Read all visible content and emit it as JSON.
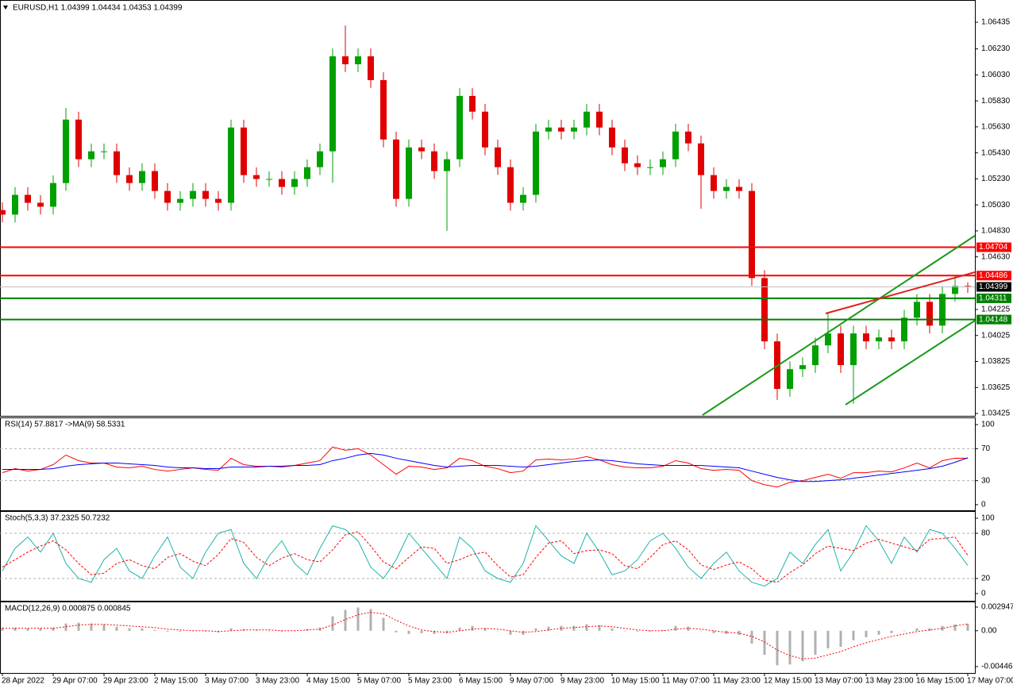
{
  "chart_data": [
    {
      "type": "candlestick",
      "title": "EURUSD,H1  1.04399 1.04434 1.04353 1.04399",
      "up_color": "#00a000",
      "down_color": "#e00000",
      "categories": [
        "28 Apr 2022",
        null,
        null,
        null,
        "29 Apr 07:00",
        null,
        null,
        null,
        "29 Apr 23:00",
        null,
        null,
        null,
        "2 May 15:00",
        null,
        null,
        null,
        "3 May 07:00",
        null,
        null,
        null,
        "3 May 23:00",
        null,
        null,
        null,
        "4 May 15:00",
        null,
        null,
        null,
        "5 May 07:00",
        null,
        null,
        null,
        "5 May 23:00",
        null,
        null,
        null,
        "6 May 15:00",
        null,
        null,
        null,
        "9 May 07:00",
        null,
        null,
        null,
        "9 May 23:00",
        null,
        null,
        null,
        "10 May 15:00",
        null,
        null,
        null,
        "11 May 07:00",
        null,
        null,
        null,
        "11 May 23:00",
        null,
        null,
        null,
        "12 May 15:00",
        null,
        null,
        null,
        "13 May 07:00",
        null,
        null,
        null,
        "13 May 23:00",
        null,
        null,
        null,
        "16 May 15:00",
        null,
        null,
        null,
        "17 May 07:00"
      ],
      "open": [
        1.0499,
        1.04955,
        1.05107,
        1.05046,
        1.05016,
        1.05198,
        1.05686,
        1.05381,
        1.05442,
        1.05442,
        1.05259,
        1.05198,
        1.0529,
        1.05137,
        1.05046,
        1.05076,
        1.05137,
        1.05076,
        1.05046,
        1.05625,
        1.05259,
        1.05229,
        1.05229,
        1.05168,
        1.05229,
        1.0532,
        1.05442,
        1.06173,
        1.06112,
        1.06173,
        1.0599,
        1.05533,
        1.05076,
        1.05472,
        1.05442,
        1.0529,
        1.05381,
        1.05868,
        1.05747,
        1.05472,
        1.0532,
        1.05046,
        1.05107,
        1.05594,
        1.05625,
        1.05594,
        1.05625,
        1.05747,
        1.05625,
        1.05472,
        1.0535,
        1.0532,
        1.0532,
        1.05381,
        1.05594,
        1.05503,
        1.05259,
        1.05137,
        1.05168,
        1.05137,
        1.04467,
        1.0398,
        1.03614,
        1.03766,
        1.03797,
        1.03949,
        1.04041,
        1.03797,
        1.04041,
        1.0398,
        1.0401,
        1.0398,
        1.04162,
        1.04284,
        1.04101,
        1.04345,
        1.04406
      ],
      "high": [
        1.0505,
        1.05167,
        1.05167,
        1.05106,
        1.05258,
        1.05776,
        1.05746,
        1.05502,
        1.05502,
        1.05502,
        1.05319,
        1.0535,
        1.0535,
        1.05197,
        1.05136,
        1.05197,
        1.05197,
        1.05136,
        1.05685,
        1.05685,
        1.05319,
        1.05289,
        1.05289,
        1.05289,
        1.0538,
        1.05502,
        1.06233,
        1.0641,
        1.06233,
        1.06233,
        1.0605,
        1.05593,
        1.05532,
        1.05532,
        1.05502,
        1.05441,
        1.05928,
        1.05928,
        1.05807,
        1.05532,
        1.0538,
        1.05167,
        1.05654,
        1.05685,
        1.05685,
        1.05685,
        1.05807,
        1.05807,
        1.05685,
        1.05532,
        1.0541,
        1.0538,
        1.05441,
        1.05654,
        1.05654,
        1.05563,
        1.05319,
        1.05228,
        1.05228,
        1.05197,
        1.04527,
        1.0404,
        1.03826,
        1.03857,
        1.04009,
        1.042,
        1.04101,
        1.04101,
        1.04101,
        1.0407,
        1.0407,
        1.04222,
        1.04344,
        1.04344,
        1.04405,
        1.0448,
        1.04434
      ],
      "low": [
        1.04895,
        1.04895,
        1.04986,
        1.04956,
        1.04956,
        1.05138,
        1.05321,
        1.05321,
        1.05382,
        1.05199,
        1.05138,
        1.05138,
        1.05077,
        1.04986,
        1.04986,
        1.05016,
        1.05016,
        1.04986,
        1.04986,
        1.05199,
        1.05169,
        1.05169,
        1.05108,
        1.05108,
        1.05169,
        1.0526,
        1.052,
        1.06052,
        1.06052,
        1.0593,
        1.05473,
        1.05016,
        1.05016,
        1.05382,
        1.0523,
        1.0483,
        1.05321,
        1.05687,
        1.05412,
        1.0526,
        1.04986,
        1.04986,
        1.05047,
        1.05534,
        1.05534,
        1.05534,
        1.05565,
        1.05565,
        1.05412,
        1.0529,
        1.0526,
        1.0526,
        1.0526,
        1.05321,
        1.05443,
        1.05,
        1.05077,
        1.05077,
        1.05077,
        1.04407,
        1.0392,
        1.0353,
        1.03554,
        1.03706,
        1.03737,
        1.03889,
        1.03737,
        1.035,
        1.0392,
        1.0392,
        1.0392,
        1.0392,
        1.04102,
        1.04041,
        1.04041,
        1.04285,
        1.04353
      ],
      "close": [
        1.04955,
        1.05107,
        1.05046,
        1.05016,
        1.05198,
        1.05686,
        1.05381,
        1.05442,
        1.05442,
        1.05259,
        1.05198,
        1.0529,
        1.05137,
        1.05046,
        1.05076,
        1.05137,
        1.05076,
        1.05046,
        1.05625,
        1.05259,
        1.05229,
        1.05229,
        1.05168,
        1.05229,
        1.0532,
        1.05442,
        1.06173,
        1.06112,
        1.06173,
        1.0599,
        1.05533,
        1.05076,
        1.05472,
        1.05442,
        1.0529,
        1.05381,
        1.05868,
        1.05747,
        1.05472,
        1.0532,
        1.05046,
        1.05107,
        1.05594,
        1.05625,
        1.05594,
        1.05625,
        1.05747,
        1.05625,
        1.05472,
        1.0535,
        1.0532,
        1.0532,
        1.05381,
        1.05594,
        1.05503,
        1.05259,
        1.05137,
        1.05168,
        1.05137,
        1.04467,
        1.0398,
        1.03614,
        1.03766,
        1.03797,
        1.03949,
        1.04041,
        1.03797,
        1.04041,
        1.0398,
        1.0401,
        1.0398,
        1.04162,
        1.04284,
        1.04101,
        1.04345,
        1.04406,
        1.04399
      ],
      "ylim": [
        1.03407,
        1.066
      ],
      "yticks": [
        1.06435,
        {
          "value": 1.0623,
          "label": "1.06230"
        },
        {
          "value": 1.0603,
          "label": "1.06030"
        },
        {
          "value": 1.0583,
          "label": "1.05830"
        },
        {
          "value": 1.0563,
          "label": "1.05630"
        },
        {
          "value": 1.0543,
          "label": "1.05430"
        },
        {
          "value": 1.0523,
          "label": "1.05230"
        },
        {
          "value": 1.0503,
          "label": "1.05030"
        },
        {
          "value": 1.0483,
          "label": "1.04830"
        },
        {
          "value": 1.0463,
          "label": "1.04630"
        },
        1.04225,
        1.04025,
        1.03825,
        1.03625,
        1.03425
      ],
      "levels": [
        {
          "value": 1.04704,
          "color": "#ff0000"
        },
        {
          "value": 1.04486,
          "color": "#ff0000"
        },
        {
          "value": 1.04311,
          "color": "#008000"
        },
        {
          "value": 1.04148,
          "color": "#008000"
        }
      ],
      "last_price": 1.04399
    },
    {
      "type": "line",
      "title": "RSI(14) 57.8817 ->MA(9) 58.5331",
      "ylim": [
        -7,
        108
      ],
      "yticks": [
        100,
        70,
        30,
        0
      ],
      "levels": [
        70,
        30
      ],
      "series": [
        {
          "color": "#ff0000",
          "values": [
            40,
            45,
            42,
            44,
            50,
            62,
            55,
            52,
            52,
            47,
            46,
            48,
            44,
            42,
            44,
            46,
            44,
            43,
            58,
            50,
            48,
            48,
            47,
            49,
            52,
            55,
            72,
            68,
            70,
            62,
            50,
            38,
            48,
            47,
            44,
            46,
            58,
            55,
            48,
            45,
            40,
            42,
            56,
            57,
            56,
            57,
            60,
            56,
            50,
            47,
            46,
            46,
            48,
            55,
            52,
            45,
            43,
            44,
            43,
            30,
            25,
            22,
            28,
            30,
            34,
            38,
            33,
            40,
            40,
            42,
            41,
            46,
            52,
            46,
            55,
            58,
            57.8817
          ]
        },
        {
          "color": "#0000ff",
          "values": [
            44,
            44,
            44,
            44,
            45,
            48,
            50,
            51,
            52,
            52,
            51,
            50,
            49,
            47,
            46,
            46,
            45,
            45,
            47,
            47,
            47,
            48,
            48,
            49,
            49,
            50,
            55,
            58,
            62,
            64,
            62,
            58,
            55,
            52,
            49,
            47,
            48,
            49,
            49,
            49,
            48,
            47,
            48,
            50,
            52,
            54,
            55,
            56,
            55,
            53,
            51,
            50,
            49,
            49,
            49,
            49,
            48,
            47,
            46,
            42,
            38,
            34,
            31,
            29,
            29,
            30,
            31,
            33,
            35,
            37,
            39,
            41,
            43,
            45,
            48,
            53,
            58.5331
          ]
        }
      ]
    },
    {
      "type": "line",
      "title": "Stoch(5,3,3) 37.2325 50.7232",
      "ylim": [
        -9.5,
        108.4
      ],
      "yticks": [
        100,
        80,
        20,
        0
      ],
      "levels": [
        80,
        20
      ],
      "series": [
        {
          "color": "#20b2aa",
          "values": [
            30,
            60,
            75,
            55,
            80,
            40,
            20,
            15,
            45,
            60,
            30,
            20,
            50,
            75,
            35,
            20,
            55,
            80,
            85,
            40,
            20,
            50,
            70,
            40,
            25,
            60,
            90,
            85,
            70,
            35,
            20,
            45,
            80,
            60,
            40,
            20,
            75,
            60,
            30,
            20,
            15,
            40,
            90,
            70,
            50,
            40,
            80,
            55,
            25,
            30,
            45,
            70,
            80,
            60,
            35,
            20,
            40,
            55,
            30,
            15,
            10,
            20,
            55,
            40,
            65,
            85,
            30,
            55,
            90,
            70,
            40,
            75,
            55,
            85,
            80,
            60,
            37.2325
          ]
        },
        {
          "color": "#ff0000",
          "dash": true,
          "values": [
            35,
            45,
            55,
            63,
            70,
            58,
            40,
            25,
            27,
            40,
            45,
            37,
            33,
            48,
            53,
            43,
            37,
            52,
            73,
            68,
            48,
            37,
            47,
            53,
            45,
            42,
            58,
            78,
            82,
            63,
            42,
            33,
            48,
            62,
            60,
            40,
            45,
            52,
            55,
            37,
            22,
            25,
            48,
            67,
            70,
            53,
            57,
            58,
            53,
            37,
            33,
            48,
            65,
            70,
            58,
            38,
            32,
            38,
            42,
            33,
            18,
            15,
            28,
            38,
            53,
            63,
            60,
            57,
            67,
            72,
            67,
            62,
            57,
            72,
            73,
            75,
            50.7232
          ]
        }
      ]
    },
    {
      "type": "macd",
      "title": "MACD(12,26,9) 0.000875 0.000845",
      "ylim": [
        -0.005258,
        0.00354
      ],
      "yticks": [
        0.002947,
        {
          "value": 0,
          "label": "0.00"
        },
        -0.004467
      ],
      "series": [
        {
          "type": "bar",
          "color": "#b0b0b0",
          "values": [
            0.0004,
            0.0004,
            0.0003,
            0.0003,
            0.0004,
            0.0009,
            0.001,
            0.0009,
            0.0008,
            0.0005,
            0.0003,
            0.0003,
            0.0001,
            -0.0001,
            -0.0001,
            0,
            -0.0001,
            -0.0002,
            0.0003,
            0.0002,
            0.0001,
            0,
            -0.0001,
            0,
            0.0002,
            0.0004,
            0.0018,
            0.0026,
            0.0029,
            0.0027,
            0.0016,
            -0.0002,
            -0.0004,
            -0.0003,
            -0.0004,
            -0.0003,
            0.0004,
            0.0006,
            0.0003,
            0,
            -0.0005,
            -0.0005,
            0.0003,
            0.0005,
            0.0006,
            0.0006,
            0.0008,
            0.0007,
            0.0003,
            0,
            -0.0001,
            -0.0001,
            0.0001,
            0.0006,
            0.0005,
            0,
            -0.0003,
            -0.0004,
            -0.0005,
            -0.0016,
            -0.003,
            -0.0043,
            -0.0042,
            -0.0038,
            -0.003,
            -0.0022,
            -0.002,
            -0.0012,
            -0.0008,
            -0.0005,
            -0.0003,
            0,
            0.0003,
            0.0003,
            0.0006,
            0.0008,
            0.000875
          ]
        },
        {
          "type": "line",
          "color": "#ff0000",
          "dash": true,
          "values": [
            0.0003,
            0.0003,
            0.0003,
            0.0003,
            0.0003,
            0.0005,
            0.0007,
            0.0008,
            0.0008,
            0.0007,
            0.0006,
            0.0005,
            0.0004,
            0.0002,
            0.0001,
            0,
            0,
            -0.0001,
            0,
            0.0001,
            0.0001,
            0.0001,
            0,
            0,
            0.0001,
            0.0002,
            0.0007,
            0.0014,
            0.002,
            0.0023,
            0.0021,
            0.0013,
            0.0006,
            0.0001,
            -0.0001,
            -0.0002,
            0,
            0.0002,
            0.0003,
            0.0002,
            0,
            -0.0002,
            -0.0001,
            0.0001,
            0.0003,
            0.0004,
            0.0005,
            0.0006,
            0.0005,
            0.0003,
            0.0001,
            0,
            0,
            0.0002,
            0.0003,
            0.0002,
            0,
            -0.0002,
            -0.0003,
            -0.0007,
            -0.0014,
            -0.0024,
            -0.0031,
            -0.0035,
            -0.0034,
            -0.003,
            -0.0026,
            -0.002,
            -0.0015,
            -0.0011,
            -0.0007,
            -0.0004,
            -0.0001,
            0.0001,
            0.0003,
            0.0006,
            0.000845
          ]
        }
      ]
    }
  ]
}
